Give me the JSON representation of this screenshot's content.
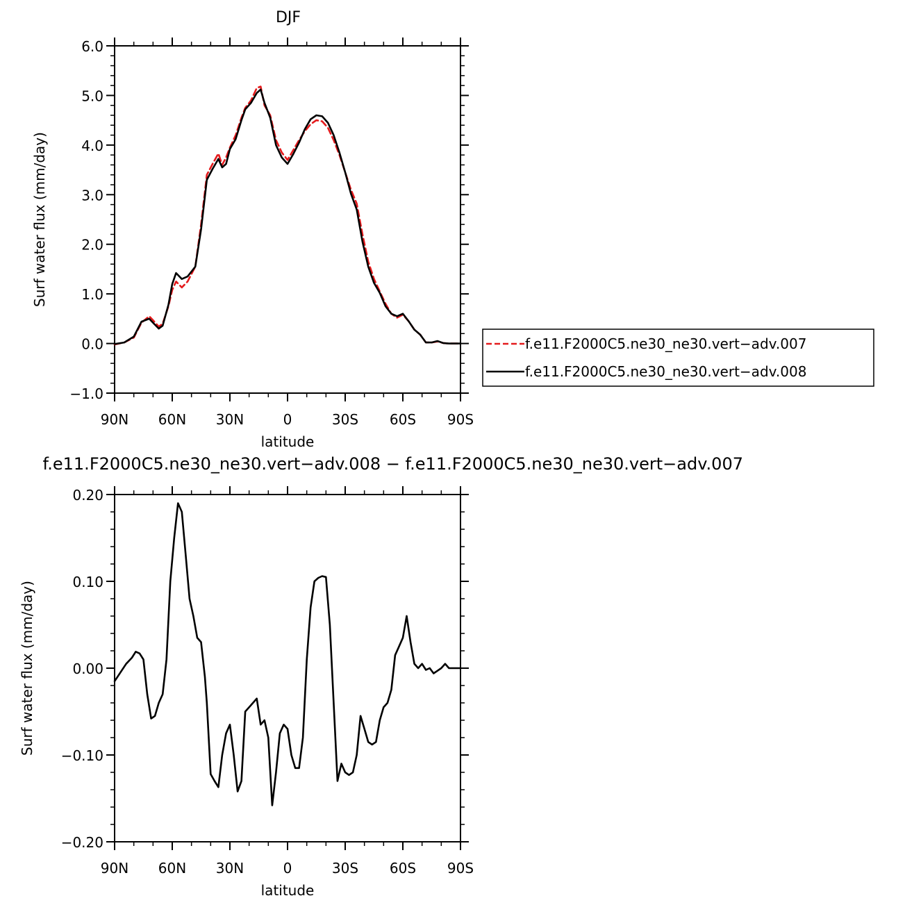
{
  "chart_data": [
    {
      "type": "line",
      "title": "DJF",
      "xlabel": "latitude",
      "ylabel": "Surf water flux (mm/day)",
      "xlim": [
        -90,
        90
      ],
      "ylim": [
        -1.0,
        6.0
      ],
      "x_ticks": [
        -90,
        -60,
        -30,
        0,
        30,
        60,
        90
      ],
      "x_tick_labels": [
        "90N",
        "60N",
        "30N",
        "0",
        "30S",
        "60S",
        "90S"
      ],
      "y_ticks": [
        -1.0,
        0.0,
        1.0,
        2.0,
        3.0,
        4.0,
        5.0,
        6.0
      ],
      "y_tick_labels": [
        "−1.0",
        "0.0",
        "1.0",
        "2.0",
        "3.0",
        "4.0",
        "5.0",
        "6.0"
      ],
      "legend": "right",
      "x": [
        -90,
        -85,
        -80,
        -76,
        -72,
        -70,
        -67,
        -65,
        -62,
        -60,
        -58,
        -55,
        -52,
        -48,
        -45,
        -42,
        -39,
        -36,
        -34,
        -32,
        -30,
        -27,
        -24,
        -22,
        -19,
        -16,
        -14,
        -12,
        -9,
        -6,
        -3,
        0,
        3,
        6,
        9,
        12,
        15,
        18,
        21,
        24,
        27,
        30,
        33,
        36,
        39,
        42,
        45,
        48,
        51,
        54,
        57,
        60,
        63,
        66,
        69,
        72,
        75,
        78,
        81,
        84,
        87,
        90
      ],
      "series": [
        {
          "name": "f.e11.F2000C5.ne30_ne30.vert−adv.007",
          "color": "#e41a1c",
          "dash": "dashed",
          "values": [
            -0.02,
            0.02,
            0.12,
            0.42,
            0.55,
            0.47,
            0.34,
            0.4,
            0.75,
            1.08,
            1.25,
            1.13,
            1.25,
            1.55,
            2.4,
            3.4,
            3.62,
            3.83,
            3.6,
            3.75,
            3.95,
            4.2,
            4.55,
            4.75,
            4.9,
            5.15,
            5.18,
            4.8,
            4.6,
            4.1,
            3.85,
            3.7,
            3.9,
            4.1,
            4.28,
            4.42,
            4.5,
            4.48,
            4.35,
            4.1,
            3.8,
            3.45,
            3.1,
            2.82,
            2.2,
            1.65,
            1.3,
            1.05,
            0.8,
            0.6,
            0.52,
            0.58,
            0.45,
            0.28,
            0.18,
            0.02,
            0.02,
            0.04,
            0.01,
            0.0,
            0.0,
            0.0
          ]
        },
        {
          "name": "f.e11.F2000C5.ne30_ne30.vert−adv.008",
          "color": "#000000",
          "dash": "solid",
          "values": [
            -0.01,
            0.02,
            0.14,
            0.44,
            0.5,
            0.42,
            0.3,
            0.36,
            0.78,
            1.2,
            1.42,
            1.3,
            1.35,
            1.55,
            2.3,
            3.3,
            3.52,
            3.72,
            3.55,
            3.62,
            3.92,
            4.12,
            4.5,
            4.72,
            4.85,
            5.05,
            5.12,
            4.85,
            4.55,
            4.0,
            3.75,
            3.62,
            3.82,
            4.05,
            4.32,
            4.52,
            4.6,
            4.58,
            4.45,
            4.2,
            3.85,
            3.45,
            3.02,
            2.7,
            2.05,
            1.55,
            1.22,
            1.02,
            0.75,
            0.6,
            0.55,
            0.6,
            0.45,
            0.28,
            0.18,
            0.02,
            0.02,
            0.05,
            0.01,
            0.0,
            0.0,
            0.0
          ]
        }
      ]
    },
    {
      "type": "line",
      "title": "f.e11.F2000C5.ne30_ne30.vert−adv.008 − f.e11.F2000C5.ne30_ne30.vert−adv.007",
      "xlabel": "latitude",
      "ylabel": "Surf water flux (mm/day)",
      "xlim": [
        -90,
        90
      ],
      "ylim": [
        -0.2,
        0.2
      ],
      "x_ticks": [
        -90,
        -60,
        -30,
        0,
        30,
        60,
        90
      ],
      "x_tick_labels": [
        "90N",
        "60N",
        "30N",
        "0",
        "30S",
        "60S",
        "90S"
      ],
      "y_ticks": [
        -0.2,
        -0.1,
        0.0,
        0.1,
        0.2
      ],
      "y_tick_labels": [
        "−0.20",
        "−0.10",
        "0.00",
        "0.10",
        "0.20"
      ],
      "x": [
        -90,
        -87,
        -84,
        -81,
        -79,
        -77,
        -75,
        -73,
        -71,
        -69,
        -67,
        -65,
        -63,
        -61,
        -59,
        -57,
        -55,
        -53,
        -51,
        -49,
        -47,
        -45,
        -43,
        -42,
        -40,
        -38,
        -36,
        -34,
        -32,
        -30,
        -28,
        -26,
        -24,
        -22,
        -20,
        -18,
        -16,
        -14,
        -12,
        -10,
        -8,
        -6,
        -4,
        -2,
        0,
        2,
        4,
        6,
        8,
        10,
        12,
        14,
        16,
        18,
        20,
        22,
        24,
        26,
        28,
        30,
        32,
        34,
        36,
        38,
        40,
        42,
        44,
        46,
        48,
        50,
        52,
        54,
        56,
        58,
        60,
        62,
        64,
        66,
        68,
        70,
        72,
        74,
        76,
        78,
        80,
        82,
        84,
        86,
        88,
        90
      ],
      "series": [
        {
          "name": "",
          "color": "#000000",
          "dash": "solid",
          "values": [
            -0.015,
            -0.005,
            0.005,
            0.012,
            0.019,
            0.017,
            0.01,
            -0.03,
            -0.058,
            -0.055,
            -0.04,
            -0.03,
            0.01,
            0.1,
            0.15,
            0.19,
            0.18,
            0.13,
            0.08,
            0.06,
            0.035,
            0.03,
            -0.01,
            -0.04,
            -0.122,
            -0.13,
            -0.137,
            -0.1,
            -0.075,
            -0.065,
            -0.1,
            -0.142,
            -0.13,
            -0.05,
            -0.045,
            -0.04,
            -0.035,
            -0.065,
            -0.06,
            -0.08,
            -0.158,
            -0.12,
            -0.075,
            -0.065,
            -0.07,
            -0.1,
            -0.115,
            -0.115,
            -0.08,
            0.01,
            0.07,
            0.1,
            0.104,
            0.106,
            0.105,
            0.05,
            -0.04,
            -0.13,
            -0.11,
            -0.12,
            -0.123,
            -0.12,
            -0.1,
            -0.055,
            -0.07,
            -0.085,
            -0.088,
            -0.085,
            -0.06,
            -0.045,
            -0.04,
            -0.025,
            0.015,
            0.025,
            0.035,
            0.06,
            0.03,
            0.005,
            0.0,
            0.005,
            -0.002,
            0.0,
            -0.006,
            -0.003,
            0.0,
            0.005,
            0.0,
            0.0,
            0.0,
            0.0
          ]
        }
      ]
    }
  ]
}
